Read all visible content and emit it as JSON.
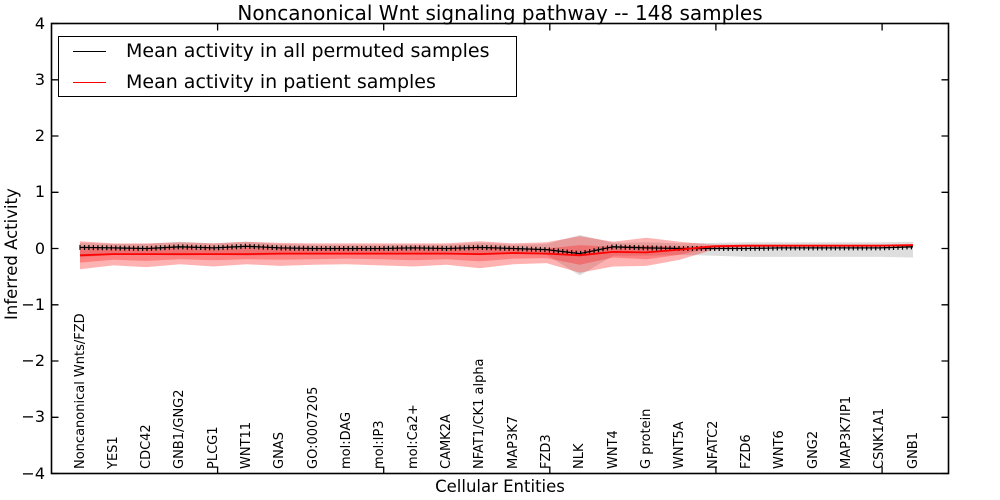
{
  "chart_data": {
    "type": "line",
    "title": "Noncanonical Wnt signaling pathway -- 148 samples",
    "xlabel": "Cellular Entities",
    "ylabel": "Inferred Activity",
    "ylim": [
      -4,
      4
    ],
    "yticks": [
      4,
      3,
      2,
      1,
      0,
      -1,
      -2,
      -3,
      -4
    ],
    "xaxis_numeric_range": [
      0,
      27
    ],
    "xticks_numeric": [
      5,
      10,
      15,
      20,
      25
    ],
    "grid": false,
    "legend_position": "upper left",
    "categories": [
      "Noncanonical Wnts/FZD",
      "YES1",
      "CDC42",
      "GNB1/GNG2",
      "PLCG1",
      "WNT11",
      "GNAS",
      "GO:0007205",
      "mol:DAG",
      "mol:IP3",
      "mol:Ca2+",
      "CAMK2A",
      "NFAT1/CK1 alpha",
      "MAP3K7",
      "FZD3",
      "NLK",
      "WNT4",
      "G protein",
      "WNT5A",
      "NFATC2",
      "FZD6",
      "WNT6",
      "GNG2",
      "MAP3K7IP1",
      "CSNK1A1",
      "GNB1"
    ],
    "series": [
      {
        "name": "Mean activity in all permuted samples",
        "color": "#000000",
        "style": "solid-with-error-ticks",
        "values": [
          0.02,
          0.01,
          0.0,
          0.03,
          0.01,
          0.04,
          0.01,
          0.0,
          0.0,
          0.0,
          0.01,
          0.0,
          0.02,
          0.0,
          -0.02,
          -0.09,
          0.03,
          0.01,
          0.0,
          0.0,
          0.0,
          0.01,
          0.01,
          0.01,
          0.01,
          0.03
        ]
      },
      {
        "name": "Mean activity in patient samples",
        "color": "#ff0000",
        "style": "solid",
        "values": [
          -0.12,
          -0.1,
          -0.1,
          -0.1,
          -0.1,
          -0.1,
          -0.09,
          -0.09,
          -0.09,
          -0.09,
          -0.09,
          -0.09,
          -0.1,
          -0.08,
          -0.09,
          -0.12,
          -0.06,
          -0.07,
          -0.02,
          0.04,
          0.05,
          0.05,
          0.05,
          0.05,
          0.05,
          0.06
        ]
      }
    ],
    "bands": [
      {
        "name": "permuted-samples-range",
        "color": "rgba(0,0,0,0.13)",
        "top": [
          0.1,
          0.08,
          0.08,
          0.12,
          0.09,
          0.12,
          0.08,
          0.07,
          0.07,
          0.07,
          0.07,
          0.07,
          0.1,
          0.07,
          0.08,
          0.24,
          0.1,
          0.11,
          0.09,
          0.1,
          0.11,
          0.11,
          0.11,
          0.11,
          0.11,
          0.12
        ],
        "bottom": [
          -0.16,
          -0.11,
          -0.11,
          -0.13,
          -0.11,
          -0.13,
          -0.11,
          -0.1,
          -0.1,
          -0.1,
          -0.1,
          -0.1,
          -0.12,
          -0.1,
          -0.11,
          -0.48,
          -0.13,
          -0.13,
          -0.11,
          -0.13,
          -0.15,
          -0.15,
          -0.15,
          -0.15,
          -0.15,
          -0.16
        ]
      },
      {
        "name": "patient-samples-range-outer",
        "color": "rgba(255,0,0,0.30)",
        "top": [
          0.13,
          0.09,
          0.09,
          0.11,
          0.09,
          0.12,
          0.1,
          0.09,
          0.09,
          0.09,
          0.09,
          0.09,
          0.13,
          0.09,
          0.11,
          0.22,
          0.12,
          0.19,
          0.12,
          0.07,
          0.07,
          0.07,
          0.07,
          0.07,
          0.07,
          0.08
        ],
        "bottom": [
          -0.37,
          -0.3,
          -0.33,
          -0.28,
          -0.32,
          -0.28,
          -0.31,
          -0.29,
          -0.28,
          -0.3,
          -0.32,
          -0.29,
          -0.35,
          -0.28,
          -0.26,
          -0.43,
          -0.32,
          -0.31,
          -0.2,
          -0.02,
          0.02,
          0.03,
          0.03,
          0.03,
          0.03,
          0.03
        ],
        "fills_over": "permuted-samples-range"
      },
      {
        "name": "patient-samples-range-inner",
        "color": "rgba(255,0,0,0.28)",
        "top": [
          0.01,
          -0.01,
          -0.01,
          0.01,
          -0.01,
          0.01,
          0.0,
          -0.01,
          -0.01,
          -0.01,
          -0.01,
          -0.01,
          0.01,
          -0.01,
          0.0,
          0.06,
          0.03,
          0.05,
          0.03,
          0.05,
          0.06,
          0.06,
          0.06,
          0.06,
          0.06,
          0.07
        ],
        "bottom": [
          -0.25,
          -0.2,
          -0.22,
          -0.19,
          -0.21,
          -0.19,
          -0.2,
          -0.19,
          -0.18,
          -0.19,
          -0.21,
          -0.19,
          -0.23,
          -0.18,
          -0.17,
          -0.29,
          -0.16,
          -0.19,
          -0.11,
          0.02,
          0.04,
          0.04,
          0.04,
          0.04,
          0.04,
          0.04
        ]
      }
    ]
  }
}
